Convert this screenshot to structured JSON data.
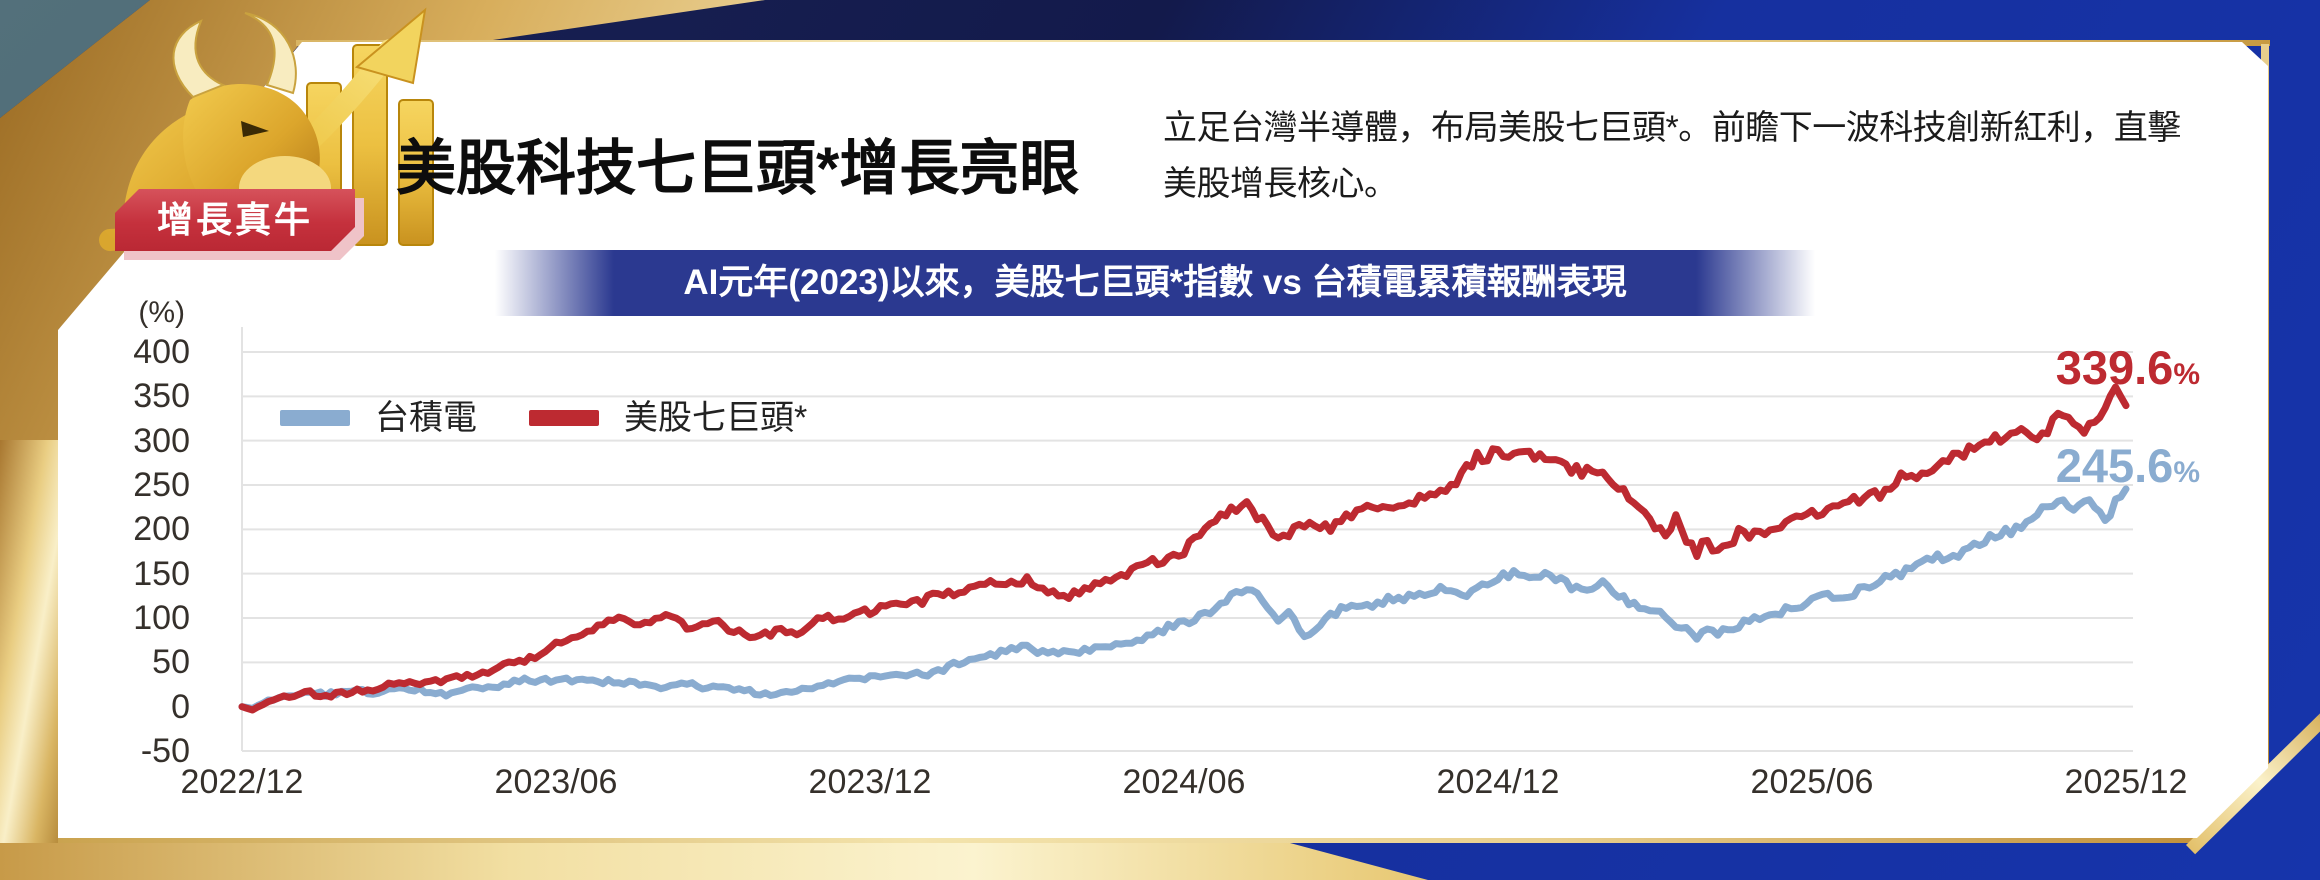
{
  "badge": {
    "label": "增長真牛"
  },
  "header": {
    "title": "美股科技七巨頭*增長亮眼",
    "description": "立足台灣半導體，布局美股七巨頭*。前瞻下一波科技創新紅利，直擊美股增長核心。"
  },
  "banner": {
    "title": "AI元年(2023)以來，美股七巨頭*指數 vs 台積電累積報酬表現"
  },
  "icon": {
    "name": "golden-bull-rising-bar-chart-arrow"
  },
  "colors": {
    "banner_navy": "#2B3990",
    "card_white": "#FFFFFF",
    "bg_navy_dark": "#141B4D",
    "bg_royal_blue": "#1634AB",
    "corner_teal": "#47626D",
    "badge_red": "#C5313D",
    "badge_shadow_pink": "#EFC3C8",
    "axis_text": "#35302B",
    "gridline": "#E3E3E3",
    "tsmc_blue": "#8AACD0",
    "m7_red": "#BD2A31"
  },
  "chart_data": {
    "type": "line",
    "title": "AI元年(2023)以來，美股七巨頭*指數 vs 台積電累積報酬表現",
    "xlabel": "",
    "ylabel": "(%)",
    "ylim": [
      -50,
      400
    ],
    "y_ticks": [
      400,
      350,
      300,
      250,
      200,
      150,
      100,
      50,
      0,
      -50
    ],
    "x_tick_labels": [
      "2022/12",
      "2023/06",
      "2023/12",
      "2024/06",
      "2024/12",
      "2025/06",
      "2025/12"
    ],
    "x_tick_positions_months": [
      0,
      6,
      12,
      18,
      24,
      30,
      36
    ],
    "x_unit": "months since 2022/12",
    "grid": "horizontal",
    "legend_position": "inside-top-left",
    "series": [
      {
        "name": "台積電",
        "color": "#8AACD0",
        "end_value": 245.6,
        "end_label": "245.6",
        "unit": "%",
        "points": [
          [
            0,
            0
          ],
          [
            0.2,
            -2
          ],
          [
            0.5,
            7
          ],
          [
            1,
            14
          ],
          [
            1.3,
            16
          ],
          [
            1.6,
            14
          ],
          [
            2,
            18
          ],
          [
            2.5,
            16
          ],
          [
            3,
            20
          ],
          [
            3.5,
            17
          ],
          [
            4,
            15
          ],
          [
            4.5,
            20
          ],
          [
            5,
            26
          ],
          [
            5.5,
            29
          ],
          [
            6,
            31
          ],
          [
            6.5,
            28
          ],
          [
            7,
            29
          ],
          [
            7.5,
            26
          ],
          [
            8,
            23
          ],
          [
            8.5,
            24
          ],
          [
            9,
            22
          ],
          [
            9.5,
            18
          ],
          [
            10,
            14
          ],
          [
            10.5,
            18
          ],
          [
            11,
            24
          ],
          [
            11.5,
            28
          ],
          [
            12,
            33
          ],
          [
            12.5,
            34
          ],
          [
            13,
            37
          ],
          [
            13.5,
            44
          ],
          [
            14,
            53
          ],
          [
            14.5,
            60
          ],
          [
            15,
            67
          ],
          [
            15.3,
            62
          ],
          [
            15.6,
            58
          ],
          [
            16,
            62
          ],
          [
            16.5,
            68
          ],
          [
            17,
            75
          ],
          [
            17.5,
            84
          ],
          [
            18,
            94
          ],
          [
            18.3,
            103
          ],
          [
            18.6,
            110
          ],
          [
            19,
            128
          ],
          [
            19.2,
            136
          ],
          [
            19.4,
            128
          ],
          [
            19.6,
            112
          ],
          [
            19.8,
            97
          ],
          [
            20,
            104
          ],
          [
            20.2,
            88
          ],
          [
            20.4,
            80
          ],
          [
            20.6,
            95
          ],
          [
            21,
            108
          ],
          [
            21.3,
            117
          ],
          [
            21.6,
            113
          ],
          [
            22,
            121
          ],
          [
            22.5,
            127
          ],
          [
            23,
            131
          ],
          [
            23.3,
            128
          ],
          [
            23.6,
            134
          ],
          [
            24,
            142
          ],
          [
            24.2,
            149
          ],
          [
            24.4,
            152
          ],
          [
            24.7,
            144
          ],
          [
            25,
            147
          ],
          [
            25.3,
            140
          ],
          [
            25.6,
            133
          ],
          [
            26,
            137
          ],
          [
            26.3,
            128
          ],
          [
            26.6,
            116
          ],
          [
            27,
            108
          ],
          [
            27.3,
            97
          ],
          [
            27.6,
            88
          ],
          [
            27.8,
            76
          ],
          [
            28,
            90
          ],
          [
            28.2,
            80
          ],
          [
            28.5,
            92
          ],
          [
            29,
            101
          ],
          [
            29.5,
            110
          ],
          [
            30,
            119
          ],
          [
            30.3,
            127
          ],
          [
            30.6,
            124
          ],
          [
            31,
            133
          ],
          [
            31.5,
            147
          ],
          [
            32,
            158
          ],
          [
            32.3,
            166
          ],
          [
            32.6,
            172
          ],
          [
            33,
            178
          ],
          [
            33.3,
            188
          ],
          [
            33.6,
            196
          ],
          [
            34,
            206
          ],
          [
            34.3,
            220
          ],
          [
            34.6,
            232
          ],
          [
            34.8,
            236
          ],
          [
            35,
            228
          ],
          [
            35.2,
            232
          ],
          [
            35.4,
            224
          ],
          [
            35.6,
            214
          ],
          [
            35.8,
            230
          ],
          [
            36,
            245.6
          ]
        ]
      },
      {
        "name": "美股七巨頭*",
        "color": "#BD2A31",
        "end_value": 339.6,
        "end_label": "339.6",
        "unit": "%",
        "points": [
          [
            0,
            0
          ],
          [
            0.2,
            -4
          ],
          [
            0.5,
            6
          ],
          [
            1,
            13
          ],
          [
            1.3,
            17
          ],
          [
            1.6,
            12
          ],
          [
            2,
            15
          ],
          [
            2.5,
            21
          ],
          [
            3,
            26
          ],
          [
            3.5,
            28
          ],
          [
            4,
            30
          ],
          [
            4.5,
            37
          ],
          [
            5,
            46
          ],
          [
            5.5,
            56
          ],
          [
            6,
            70
          ],
          [
            6.5,
            83
          ],
          [
            7,
            95
          ],
          [
            7.3,
            98
          ],
          [
            7.6,
            90
          ],
          [
            8,
            100
          ],
          [
            8.3,
            96
          ],
          [
            8.6,
            90
          ],
          [
            9,
            95
          ],
          [
            9.3,
            88
          ],
          [
            9.6,
            84
          ],
          [
            10,
            80
          ],
          [
            10.3,
            85
          ],
          [
            10.6,
            80
          ],
          [
            11,
            96
          ],
          [
            11.5,
            102
          ],
          [
            12,
            108
          ],
          [
            12.5,
            113
          ],
          [
            13,
            119
          ],
          [
            13.5,
            126
          ],
          [
            14,
            134
          ],
          [
            14.5,
            141
          ],
          [
            15,
            144
          ],
          [
            15.3,
            134
          ],
          [
            15.6,
            123
          ],
          [
            16,
            129
          ],
          [
            16.5,
            141
          ],
          [
            17,
            153
          ],
          [
            17.5,
            164
          ],
          [
            18,
            177
          ],
          [
            18.5,
            202
          ],
          [
            18.8,
            218
          ],
          [
            19,
            228
          ],
          [
            19.2,
            232
          ],
          [
            19.5,
            206
          ],
          [
            19.8,
            188
          ],
          [
            20,
            196
          ],
          [
            20.3,
            204
          ],
          [
            20.6,
            197
          ],
          [
            21,
            211
          ],
          [
            21.5,
            221
          ],
          [
            22,
            229
          ],
          [
            22.3,
            224
          ],
          [
            22.6,
            236
          ],
          [
            23,
            246
          ],
          [
            23.3,
            262
          ],
          [
            23.6,
            277
          ],
          [
            24,
            288
          ],
          [
            24.2,
            280
          ],
          [
            24.4,
            290
          ],
          [
            24.7,
            278
          ],
          [
            25,
            284
          ],
          [
            25.3,
            272
          ],
          [
            25.6,
            262
          ],
          [
            26,
            268
          ],
          [
            26.3,
            246
          ],
          [
            26.6,
            226
          ],
          [
            27,
            207
          ],
          [
            27.2,
            196
          ],
          [
            27.4,
            213
          ],
          [
            27.6,
            186
          ],
          [
            27.8,
            172
          ],
          [
            28,
            190
          ],
          [
            28.2,
            174
          ],
          [
            28.4,
            182
          ],
          [
            28.6,
            196
          ],
          [
            28.8,
            186
          ],
          [
            29,
            198
          ],
          [
            29.5,
            207
          ],
          [
            30,
            216
          ],
          [
            30.5,
            223
          ],
          [
            31,
            232
          ],
          [
            31.5,
            250
          ],
          [
            32,
            263
          ],
          [
            32.3,
            272
          ],
          [
            32.6,
            280
          ],
          [
            33,
            287
          ],
          [
            33.3,
            296
          ],
          [
            33.6,
            306
          ],
          [
            34,
            309
          ],
          [
            34.2,
            303
          ],
          [
            34.5,
            316
          ],
          [
            34.8,
            331
          ],
          [
            35,
            324
          ],
          [
            35.2,
            312
          ],
          [
            35.4,
            330
          ],
          [
            35.6,
            341
          ],
          [
            35.8,
            352
          ],
          [
            36,
            339.6
          ]
        ]
      }
    ]
  }
}
